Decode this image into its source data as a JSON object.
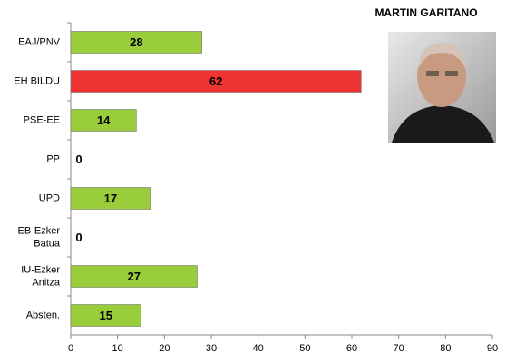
{
  "chart_data": {
    "type": "bar",
    "orientation": "horizontal",
    "title": "MARTIN GARITANO",
    "categories": [
      "EAJ/PNV",
      "EH BILDU",
      "PSE-EE",
      "PP",
      "UPD",
      "EB-Ezker\nBatua",
      "IU-Ezker\nAnitza",
      "Absten."
    ],
    "values": [
      28,
      62,
      14,
      0,
      17,
      0,
      27,
      15
    ],
    "colors": [
      "#9acd3c",
      "#ee3333",
      "#9acd3c",
      "#9acd3c",
      "#9acd3c",
      "#9acd3c",
      "#9acd3c",
      "#9acd3c"
    ],
    "xlim": [
      0,
      90
    ],
    "xticks": [
      0,
      10,
      20,
      30,
      40,
      50,
      60,
      70,
      80,
      90
    ],
    "grid": false
  }
}
